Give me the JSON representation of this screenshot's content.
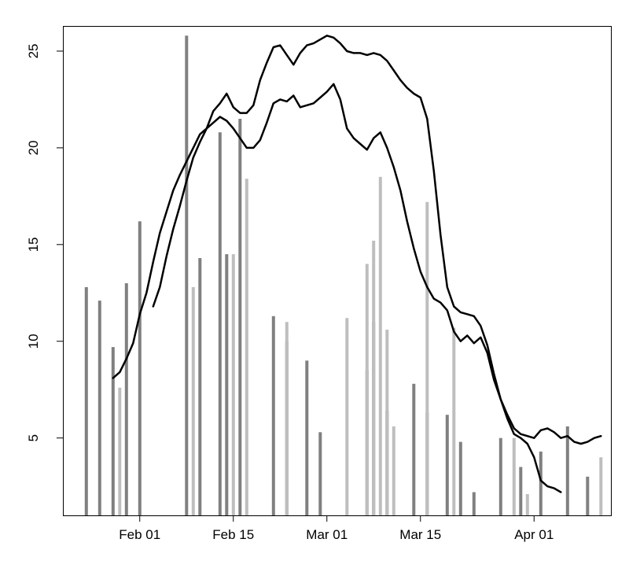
{
  "chart_data": {
    "type": "bar+line",
    "title": "",
    "xlabel": "",
    "ylabel": "",
    "x_ticks": [
      {
        "label": "Feb 01",
        "day": 31
      },
      {
        "label": "Feb 15",
        "day": 45
      },
      {
        "label": "Mar 01",
        "day": 59
      },
      {
        "label": "Mar 15",
        "day": 73
      },
      {
        "label": "Apr 01",
        "day": 90
      }
    ],
    "y_ticks": [
      5,
      10,
      15,
      20,
      25
    ],
    "xlim": [
      19.5,
      101.5
    ],
    "ylim": [
      1,
      26.3
    ],
    "bar_series": [
      {
        "color": "#808080",
        "points": [
          {
            "day": 23,
            "value": 12.8
          },
          {
            "day": 25,
            "value": 12.1
          },
          {
            "day": 27,
            "value": 9.7
          },
          {
            "day": 29,
            "value": 13.0
          },
          {
            "day": 31,
            "value": 16.2
          },
          {
            "day": 38,
            "value": 25.8
          },
          {
            "day": 40,
            "value": 14.3
          },
          {
            "day": 43,
            "value": 20.8
          },
          {
            "day": 44,
            "value": 14.5
          },
          {
            "day": 46,
            "value": 21.5
          },
          {
            "day": 51,
            "value": 11.3
          },
          {
            "day": 53,
            "value": 10.0
          },
          {
            "day": 56,
            "value": 9.0
          },
          {
            "day": 58,
            "value": 5.3
          },
          {
            "day": 65,
            "value": 8.5
          },
          {
            "day": 66,
            "value": 11.0
          },
          {
            "day": 68,
            "value": 6.4
          },
          {
            "day": 72,
            "value": 7.8
          },
          {
            "day": 74,
            "value": 6.3
          },
          {
            "day": 77,
            "value": 6.2
          },
          {
            "day": 79,
            "value": 4.8
          },
          {
            "day": 81,
            "value": 2.2
          },
          {
            "day": 85,
            "value": 5.0
          },
          {
            "day": 88,
            "value": 3.5
          },
          {
            "day": 91,
            "value": 4.3
          },
          {
            "day": 95,
            "value": 5.6
          },
          {
            "day": 98,
            "value": 3.0
          }
        ]
      },
      {
        "color": "#bebebe",
        "points": [
          {
            "day": 28,
            "value": 7.6
          },
          {
            "day": 39,
            "value": 12.8
          },
          {
            "day": 45,
            "value": 14.5
          },
          {
            "day": 47,
            "value": 18.4
          },
          {
            "day": 53,
            "value": 11.0
          },
          {
            "day": 62,
            "value": 11.2
          },
          {
            "day": 65,
            "value": 14.0
          },
          {
            "day": 66,
            "value": 15.2
          },
          {
            "day": 67,
            "value": 18.5
          },
          {
            "day": 68,
            "value": 10.6
          },
          {
            "day": 69,
            "value": 5.6
          },
          {
            "day": 74,
            "value": 17.2
          },
          {
            "day": 78,
            "value": 10.7
          },
          {
            "day": 87,
            "value": 5.0
          },
          {
            "day": 89,
            "value": 2.1
          },
          {
            "day": 100,
            "value": 4.0
          }
        ]
      }
    ],
    "line_series": [
      {
        "color": "#000000",
        "points": [
          [
            27,
            8.1
          ],
          [
            28,
            8.4
          ],
          [
            29,
            9.1
          ],
          [
            30,
            9.9
          ],
          [
            31,
            11.4
          ],
          [
            32,
            12.5
          ],
          [
            33,
            14.1
          ],
          [
            34,
            15.6
          ],
          [
            35,
            16.7
          ],
          [
            36,
            17.8
          ],
          [
            37,
            18.6
          ],
          [
            38,
            19.3
          ],
          [
            39,
            20.0
          ],
          [
            40,
            20.7
          ],
          [
            41,
            21.0
          ],
          [
            42,
            21.3
          ],
          [
            43,
            21.6
          ],
          [
            44,
            21.4
          ],
          [
            45,
            21.0
          ],
          [
            46,
            20.5
          ],
          [
            47,
            20.0
          ],
          [
            48,
            20.0
          ],
          [
            49,
            20.4
          ],
          [
            50,
            21.3
          ],
          [
            51,
            22.3
          ],
          [
            52,
            22.5
          ],
          [
            53,
            22.4
          ],
          [
            54,
            22.7
          ],
          [
            55,
            22.1
          ],
          [
            56,
            22.2
          ],
          [
            57,
            22.3
          ],
          [
            58,
            22.6
          ],
          [
            59,
            22.9
          ],
          [
            60,
            23.3
          ],
          [
            61,
            22.5
          ],
          [
            62,
            21.0
          ],
          [
            63,
            20.5
          ],
          [
            64,
            20.2
          ],
          [
            65,
            19.9
          ],
          [
            66,
            20.5
          ],
          [
            67,
            20.8
          ],
          [
            68,
            20.0
          ],
          [
            69,
            19.0
          ],
          [
            70,
            17.8
          ],
          [
            71,
            16.2
          ],
          [
            72,
            14.8
          ],
          [
            73,
            13.6
          ],
          [
            74,
            12.8
          ],
          [
            75,
            12.2
          ],
          [
            76,
            12.0
          ],
          [
            77,
            11.6
          ],
          [
            78,
            10.5
          ],
          [
            79,
            10.0
          ],
          [
            80,
            10.3
          ],
          [
            81,
            9.9
          ],
          [
            82,
            10.2
          ],
          [
            83,
            9.4
          ],
          [
            84,
            8.0
          ],
          [
            85,
            7.0
          ],
          [
            86,
            6.2
          ],
          [
            87,
            5.5
          ],
          [
            88,
            5.2
          ],
          [
            89,
            5.1
          ],
          [
            90,
            5.0
          ],
          [
            91,
            5.4
          ],
          [
            92,
            5.5
          ],
          [
            93,
            5.3
          ],
          [
            94,
            5.0
          ],
          [
            95,
            5.1
          ],
          [
            96,
            4.8
          ],
          [
            97,
            4.7
          ],
          [
            98,
            4.8
          ],
          [
            99,
            5.0
          ],
          [
            100,
            5.1
          ]
        ]
      },
      {
        "color": "#000000",
        "points": [
          [
            33,
            11.8
          ],
          [
            34,
            12.8
          ],
          [
            35,
            14.4
          ],
          [
            36,
            15.8
          ],
          [
            37,
            17.0
          ],
          [
            38,
            18.3
          ],
          [
            39,
            19.5
          ],
          [
            40,
            20.3
          ],
          [
            41,
            21.0
          ],
          [
            42,
            21.9
          ],
          [
            43,
            22.3
          ],
          [
            44,
            22.8
          ],
          [
            45,
            22.1
          ],
          [
            46,
            21.8
          ],
          [
            47,
            21.8
          ],
          [
            48,
            22.2
          ],
          [
            49,
            23.5
          ],
          [
            50,
            24.4
          ],
          [
            51,
            25.2
          ],
          [
            52,
            25.3
          ],
          [
            53,
            24.8
          ],
          [
            54,
            24.3
          ],
          [
            55,
            24.9
          ],
          [
            56,
            25.3
          ],
          [
            57,
            25.4
          ],
          [
            58,
            25.6
          ],
          [
            59,
            25.8
          ],
          [
            60,
            25.7
          ],
          [
            61,
            25.4
          ],
          [
            62,
            25.0
          ],
          [
            63,
            24.9
          ],
          [
            64,
            24.9
          ],
          [
            65,
            24.8
          ],
          [
            66,
            24.9
          ],
          [
            67,
            24.8
          ],
          [
            68,
            24.5
          ],
          [
            69,
            24.0
          ],
          [
            70,
            23.5
          ],
          [
            71,
            23.1
          ],
          [
            72,
            22.8
          ],
          [
            73,
            22.6
          ],
          [
            74,
            21.5
          ],
          [
            75,
            18.8
          ],
          [
            76,
            15.5
          ],
          [
            77,
            12.8
          ],
          [
            78,
            11.8
          ],
          [
            79,
            11.5
          ],
          [
            80,
            11.4
          ],
          [
            81,
            11.3
          ],
          [
            82,
            10.8
          ],
          [
            83,
            9.8
          ],
          [
            84,
            8.3
          ],
          [
            85,
            7.0
          ],
          [
            86,
            6.0
          ],
          [
            87,
            5.2
          ],
          [
            88,
            5.0
          ],
          [
            89,
            4.7
          ],
          [
            90,
            4.0
          ],
          [
            91,
            2.8
          ],
          [
            92,
            2.5
          ],
          [
            93,
            2.4
          ],
          [
            94,
            2.2
          ]
        ]
      }
    ]
  }
}
